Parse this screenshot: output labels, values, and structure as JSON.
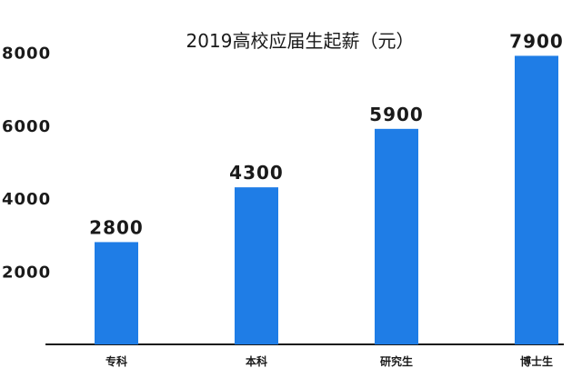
{
  "colors": {
    "bar": "#1f7de6",
    "axis": "#1a1a1a",
    "text": "#1a1a1a",
    "background": "#ffffff"
  },
  "chart_data": {
    "type": "bar",
    "title": "2019高校应届生起薪（元）",
    "categories": [
      "专科",
      "本科",
      "研究生",
      "博士生"
    ],
    "values": [
      2800,
      4300,
      5900,
      7900
    ],
    "value_labels": [
      "2800",
      "4300",
      "5900",
      "7900"
    ],
    "y_ticks": [
      2000,
      4000,
      6000,
      8000
    ],
    "y_tick_labels": [
      "2000",
      "4000",
      "6000",
      "8000"
    ],
    "ylim": [
      0,
      8000
    ],
    "grid": false,
    "legend": "none"
  }
}
